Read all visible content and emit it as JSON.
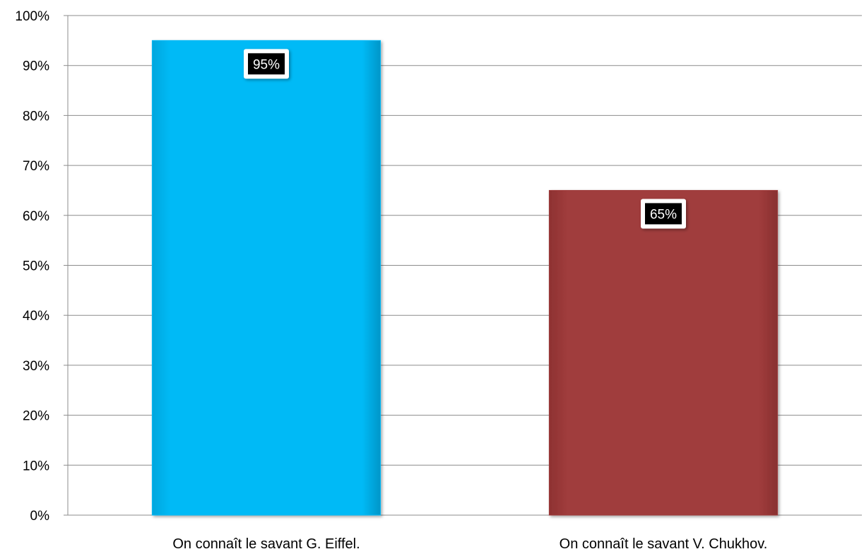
{
  "chart_data": {
    "type": "bar",
    "categories": [
      "On connaît le savant G. Eiffel.",
      "On connaît le savant V. Chukhov."
    ],
    "values": [
      95,
      65
    ],
    "data_labels": [
      "95%",
      "65%"
    ],
    "colors": [
      "#00B9F5",
      "#9E3A3A"
    ],
    "ylim": [
      0,
      100
    ],
    "y_ticks": [
      {
        "value": 0,
        "label": "0%"
      },
      {
        "value": 10,
        "label": "10%"
      },
      {
        "value": 20,
        "label": "20%"
      },
      {
        "value": 30,
        "label": "30%"
      },
      {
        "value": 40,
        "label": "40%"
      },
      {
        "value": 50,
        "label": "50%"
      },
      {
        "value": 60,
        "label": "60%"
      },
      {
        "value": 70,
        "label": "70%"
      },
      {
        "value": 80,
        "label": "80%"
      },
      {
        "value": 90,
        "label": "90%"
      },
      {
        "value": 100,
        "label": "100%"
      }
    ],
    "grid": true,
    "legend": "none",
    "title": "",
    "xlabel": "",
    "ylabel": ""
  }
}
